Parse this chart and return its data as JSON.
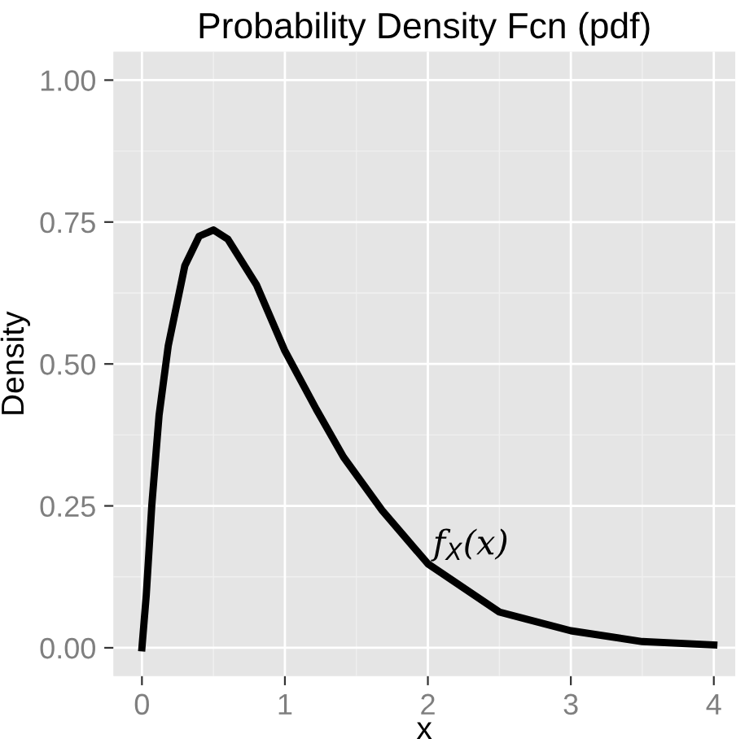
{
  "chart_data": {
    "type": "line",
    "title": "Probability Density Fcn (pdf)",
    "xlabel": "x",
    "ylabel": "Density",
    "x": [
      0,
      0.03,
      0.069,
      0.12,
      0.184,
      0.3,
      0.4,
      0.5,
      0.6,
      0.8,
      1.0,
      1.22,
      1.41,
      1.68,
      2.0,
      2.5,
      3.0,
      3.5,
      4.0
    ],
    "series": [
      {
        "color": "#000000",
        "values": [
          0,
          0.092,
          0.251,
          0.41,
          0.532,
          0.673,
          0.725,
          0.736,
          0.72,
          0.64,
          0.523,
          0.42,
          0.336,
          0.242,
          0.148,
          0.063,
          0.03,
          0.011,
          0.005
        ]
      }
    ],
    "annotations": [
      "f$_{X}$(x)"
    ],
    "xlim": [
      -0.2,
      4.15
    ],
    "ylim": [
      -0.05,
      1.05
    ],
    "xticks": [
      0,
      1,
      2,
      3,
      4
    ],
    "yticks": [
      {
        "value": 0,
        "label": "0.00"
      },
      {
        "value": 0.25,
        "label": "0.25"
      },
      {
        "value": 0.5,
        "label": "0.50"
      },
      {
        "value": 0.75,
        "label": "0.75"
      },
      {
        "value": 1,
        "label": "1.00"
      }
    ],
    "grid": true,
    "legend": false,
    "marker": "none",
    "line_style": "solid"
  }
}
